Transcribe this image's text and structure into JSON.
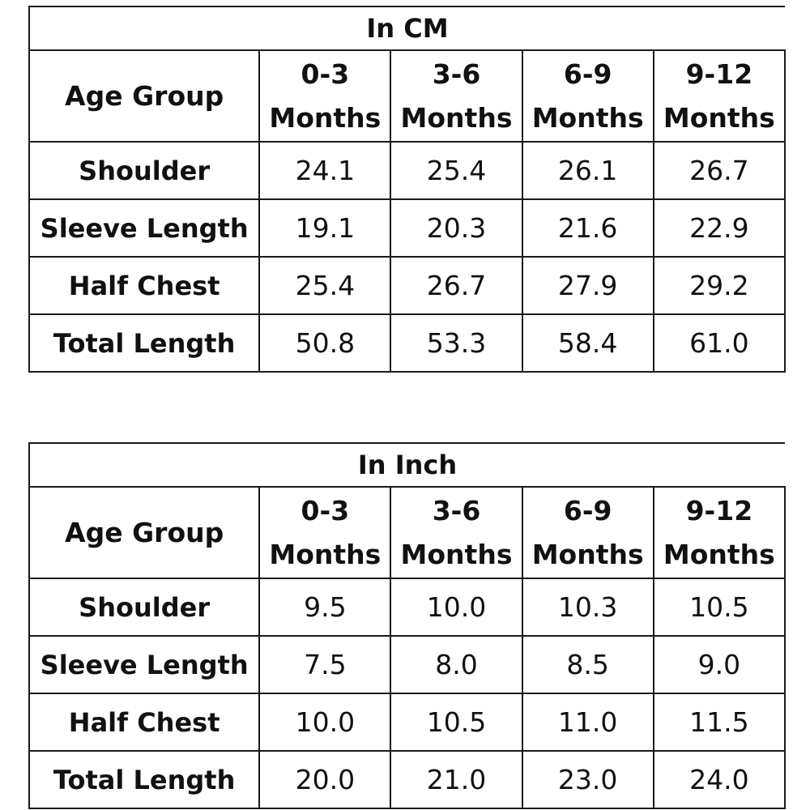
{
  "tables": [
    {
      "title": "In CM",
      "header_label": "Age Group",
      "columns": [
        {
          "range": "0-3",
          "unit": "Months"
        },
        {
          "range": "3-6",
          "unit": "Months"
        },
        {
          "range": "6-9",
          "unit": "Months"
        },
        {
          "range": "9-12",
          "unit": "Months"
        }
      ],
      "rows": [
        {
          "label": "Shoulder",
          "values": [
            "24.1",
            "25.4",
            "26.1",
            "26.7"
          ]
        },
        {
          "label": "Sleeve Length",
          "values": [
            "19.1",
            "20.3",
            "21.6",
            "22.9"
          ]
        },
        {
          "label": "Half Chest",
          "values": [
            "25.4",
            "26.7",
            "27.9",
            "29.2"
          ]
        },
        {
          "label": "Total Length",
          "values": [
            "50.8",
            "53.3",
            "58.4",
            "61.0"
          ]
        }
      ]
    },
    {
      "title": "In Inch",
      "header_label": "Age Group",
      "columns": [
        {
          "range": "0-3",
          "unit": "Months"
        },
        {
          "range": "3-6",
          "unit": "Months"
        },
        {
          "range": "6-9",
          "unit": "Months"
        },
        {
          "range": "9-12",
          "unit": "Months"
        }
      ],
      "rows": [
        {
          "label": "Shoulder",
          "values": [
            "9.5",
            "10.0",
            "10.3",
            "10.5"
          ]
        },
        {
          "label": "Sleeve Length",
          "values": [
            "7.5",
            "8.0",
            "8.5",
            "9.0"
          ]
        },
        {
          "label": "Half Chest",
          "values": [
            "10.0",
            "10.5",
            "11.0",
            "11.5"
          ]
        },
        {
          "label": "Total Length",
          "values": [
            "20.0",
            "21.0",
            "23.0",
            "24.0"
          ]
        }
      ]
    }
  ]
}
